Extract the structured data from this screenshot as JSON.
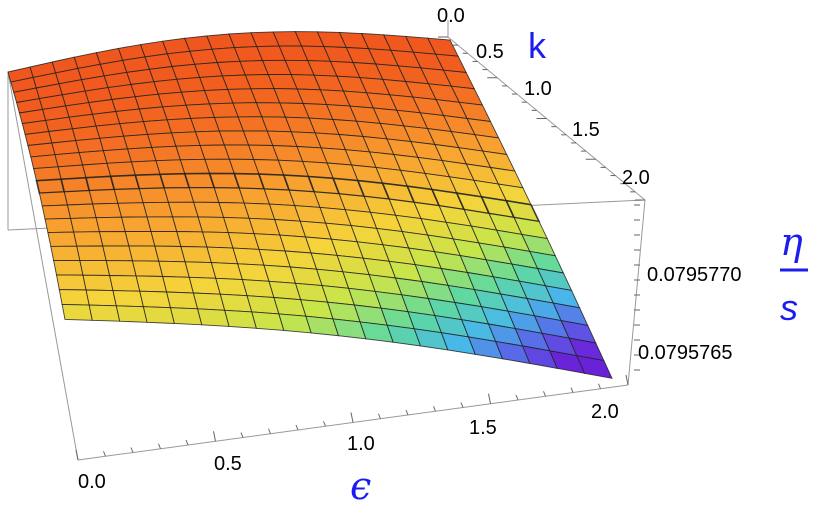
{
  "chart_data": {
    "type": "surface3d",
    "title": "",
    "xlabel": "ϵ",
    "ylabel": "k",
    "zlabel_numerator": "η",
    "zlabel_denominator": "s",
    "x_ticks": [
      "0.0",
      "0.5",
      "1.0",
      "1.5",
      "2.0"
    ],
    "y_ticks": [
      "0.0",
      "0.5",
      "1.0",
      "1.5",
      "2.0"
    ],
    "z_ticks": [
      "0.0795765",
      "0.0795770"
    ],
    "xlim": [
      0,
      2
    ],
    "ylim": [
      0,
      2
    ],
    "zlim": [
      0.0795763,
      0.0795774
    ],
    "surface_z_at_corners": {
      "eps0_k0": 0.0795773,
      "eps2_k0": 0.0795773,
      "eps0_k2": 0.079577,
      "eps2_k2": 0.0795763
    },
    "colormap": [
      "#e8281e",
      "#f2601e",
      "#f8a030",
      "#f5d33a",
      "#c8e54a",
      "#5fd9a0",
      "#48b8e8",
      "#5a62e8",
      "#6a22d8"
    ],
    "mesh": "on",
    "box": "on"
  }
}
